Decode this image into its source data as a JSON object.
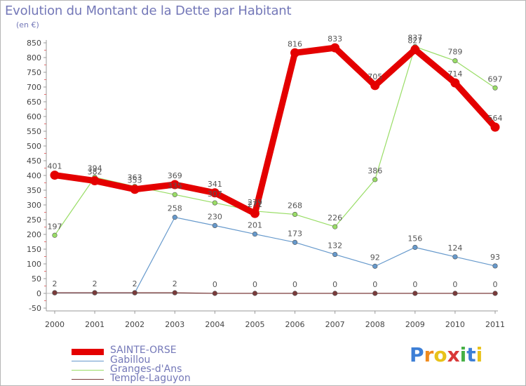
{
  "chart_title": "Evolution du Montant de la Dette par Habitant",
  "chart_unit": "(en €)",
  "logo": "Proxiti",
  "chart_data": {
    "type": "line",
    "title": "Evolution du Montant de la Dette par Habitant",
    "ylabel": "(en €)",
    "xlabel": "",
    "x": [
      "2000",
      "2001",
      "2002",
      "2003",
      "2004",
      "2005",
      "2006",
      "2007",
      "2008",
      "2009",
      "2010",
      "2011"
    ],
    "ylim": [
      -50,
      850
    ],
    "yticks": [
      -50,
      0,
      50,
      100,
      150,
      200,
      250,
      300,
      350,
      400,
      450,
      500,
      550,
      600,
      650,
      700,
      750,
      800,
      850
    ],
    "grid": false,
    "legend_position": "bottom-left",
    "series": [
      {
        "name": "SAINTE-ORSE",
        "color": "#e40000",
        "values": [
          401,
          382,
          353,
          369,
          341,
          271,
          816,
          833,
          705,
          827,
          714,
          564
        ],
        "labels": [
          "401",
          "382",
          "353",
          "369",
          "341",
          "271",
          "816",
          "833",
          "705",
          "827",
          "714",
          "564"
        ]
      },
      {
        "name": "Gabillou",
        "color": "#6699cc",
        "values": [
          2,
          2,
          2,
          258,
          230,
          201,
          173,
          132,
          92,
          156,
          124,
          93
        ],
        "labels": [
          "",
          "",
          "",
          "258",
          "230",
          "201",
          "173",
          "132",
          "92",
          "156",
          "124",
          "93"
        ]
      },
      {
        "name": "Granges-d'Ans",
        "color": "#99dd66",
        "values": [
          197,
          394,
          363,
          335,
          307,
          279,
          268,
          226,
          386,
          837,
          789,
          697
        ],
        "labels": [
          "197",
          "394",
          "363",
          "335",
          "307",
          "279",
          "268",
          "226",
          "386",
          "837",
          "789",
          "697"
        ]
      },
      {
        "name": "Temple-Laguyon",
        "color": "#7a3a3a",
        "values": [
          2,
          2,
          2,
          2,
          0,
          0,
          0,
          0,
          0,
          0,
          0,
          0
        ],
        "labels": [
          "2",
          "2",
          "2",
          "2",
          "0",
          "0",
          "0",
          "0",
          "0",
          "0",
          "0",
          "0"
        ]
      }
    ]
  }
}
